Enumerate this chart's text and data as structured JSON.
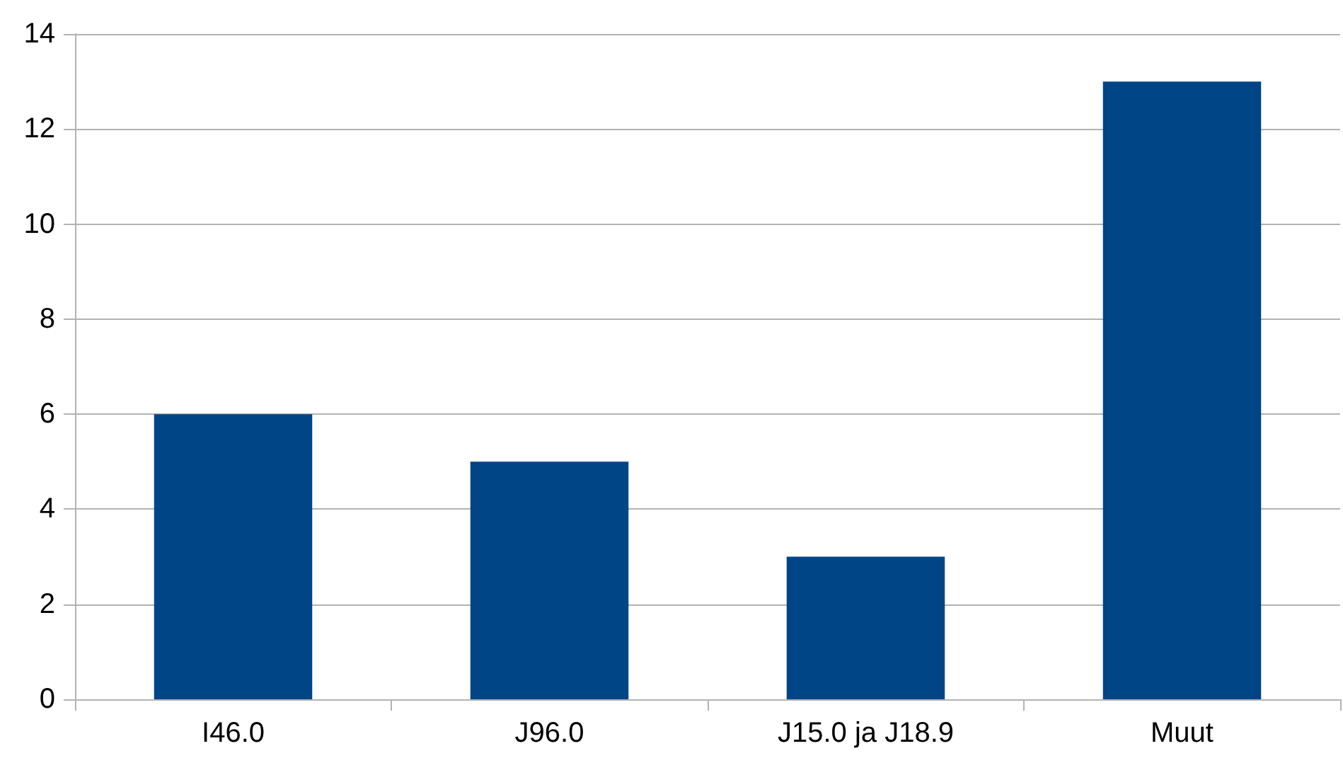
{
  "chart_data": {
    "type": "bar",
    "categories": [
      "I46.0",
      "J96.0",
      "J15.0 ja J18.9",
      "Muut"
    ],
    "values": [
      6,
      5,
      3,
      13
    ],
    "color": "#004586",
    "ylim": [
      0,
      14
    ],
    "yticks": [
      0,
      2,
      4,
      6,
      8,
      10,
      12,
      14
    ],
    "grid": "y"
  }
}
